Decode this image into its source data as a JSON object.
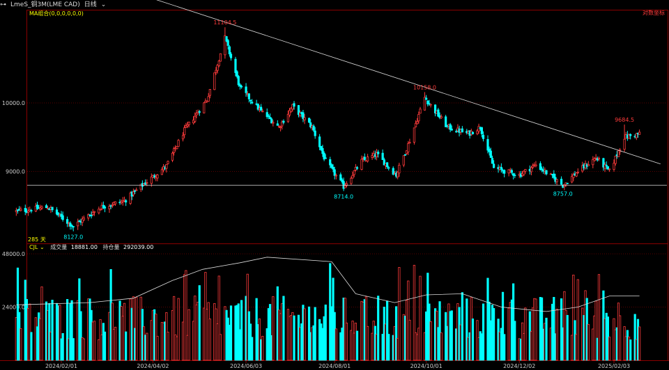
{
  "header": {
    "link_icon": "link-icon",
    "symbol": "LmeS_铜3M(LME CAD)",
    "period": "日线",
    "dropdown_icon": "chevron-down-icon"
  },
  "price_panel": {
    "ma_label": "MA组合(0,0,0,0,0,0)",
    "log_scale_label": "对数坐标",
    "day_count_label": "285 天",
    "colors": {
      "up": "#ff3b3b",
      "down": "#00ffff",
      "ma_label": "#ffff00",
      "peak_label": "#ff3b3b",
      "trough_label": "#00ffff"
    }
  },
  "volume_panel": {
    "indicator": "CJL",
    "volume_label": "成交量",
    "volume_value": "18881.00",
    "oi_label": "持仓量",
    "oi_value": "292039.00"
  },
  "chart_data": {
    "type": "candlestick",
    "x_ticks": [
      "2024/02/01",
      "2024/04/02",
      "2024/06/03",
      "2024/08/01",
      "2024/10/01",
      "2024/12/02",
      "2025/02/03"
    ],
    "y_ticks_price": [
      "10000.0",
      "9000.0"
    ],
    "y_ticks_volume": [
      "48000.0",
      "24000.0"
    ],
    "price_range": [
      7950,
      11350
    ],
    "volume_range": [
      0,
      48000
    ],
    "annotations": [
      {
        "text": "11104.5",
        "kind": "high",
        "value": 11104.5,
        "date": "2024/05/20"
      },
      {
        "text": "8127.0",
        "kind": "low",
        "value": 8127.0,
        "date": "2024/02/09"
      },
      {
        "text": "8714.0",
        "kind": "low",
        "value": 8714.0,
        "date": "2024/08/07"
      },
      {
        "text": "10158.0",
        "kind": "high",
        "value": 10158.0,
        "date": "2024/09/30"
      },
      {
        "text": "8757.0",
        "kind": "low",
        "value": 8757.0,
        "date": "2024/12/31"
      },
      {
        "text": "9684.5",
        "kind": "high",
        "value": 9684.5,
        "date": "2025/02/10"
      }
    ],
    "anchors": [
      {
        "date": "2024/01/02",
        "close": 8420
      },
      {
        "date": "2024/01/23",
        "close": 8480
      },
      {
        "date": "2024/02/09",
        "close": 8200
      },
      {
        "date": "2024/02/27",
        "close": 8480
      },
      {
        "date": "2024/03/14",
        "close": 8570
      },
      {
        "date": "2024/03/26",
        "close": 8800
      },
      {
        "date": "2024/04/11",
        "close": 9080
      },
      {
        "date": "2024/04/23",
        "close": 9600
      },
      {
        "date": "2024/05/08",
        "close": 10050
      },
      {
        "date": "2024/05/20",
        "close": 10950
      },
      {
        "date": "2024/05/30",
        "close": 10220
      },
      {
        "date": "2024/06/13",
        "close": 9880
      },
      {
        "date": "2024/06/25",
        "close": 9650
      },
      {
        "date": "2024/07/04",
        "close": 9950
      },
      {
        "date": "2024/07/17",
        "close": 9650
      },
      {
        "date": "2024/07/26",
        "close": 9150
      },
      {
        "date": "2024/08/07",
        "close": 8780
      },
      {
        "date": "2024/08/19",
        "close": 9150
      },
      {
        "date": "2024/08/29",
        "close": 9250
      },
      {
        "date": "2024/09/11",
        "close": 8950
      },
      {
        "date": "2024/09/20",
        "close": 9450
      },
      {
        "date": "2024/09/30",
        "close": 10080
      },
      {
        "date": "2024/10/15",
        "close": 9650
      },
      {
        "date": "2024/10/29",
        "close": 9550
      },
      {
        "date": "2024/11/06",
        "close": 9650
      },
      {
        "date": "2024/11/15",
        "close": 9050
      },
      {
        "date": "2024/12/02",
        "close": 8950
      },
      {
        "date": "2024/12/13",
        "close": 9100
      },
      {
        "date": "2024/12/31",
        "close": 8800
      },
      {
        "date": "2025/01/10",
        "close": 9000
      },
      {
        "date": "2025/01/22",
        "close": 9200
      },
      {
        "date": "2025/01/31",
        "close": 9000
      },
      {
        "date": "2025/02/10",
        "close": 9500
      },
      {
        "date": "2025/02/20",
        "close": 9550
      }
    ],
    "trendline": {
      "start": {
        "date": "2023/12/01",
        "price": 12400
      },
      "end": {
        "date": "2025/03/06",
        "price": 9110
      }
    },
    "support_line": 8800,
    "open_interest": [
      {
        "date": "2024/01/02",
        "value": 25000
      },
      {
        "date": "2024/02/20",
        "value": 26000
      },
      {
        "date": "2024/03/20",
        "value": 28000
      },
      {
        "date": "2024/04/15",
        "value": 36000
      },
      {
        "date": "2024/05/05",
        "value": 41000
      },
      {
        "date": "2024/05/30",
        "value": 44000
      },
      {
        "date": "2024/06/17",
        "value": 46500
      },
      {
        "date": "2024/07/30",
        "value": 44500
      },
      {
        "date": "2024/08/15",
        "value": 30000
      },
      {
        "date": "2024/09/10",
        "value": 26000
      },
      {
        "date": "2024/10/01",
        "value": 29500
      },
      {
        "date": "2024/10/25",
        "value": 30000
      },
      {
        "date": "2024/11/20",
        "value": 24000
      },
      {
        "date": "2024/12/20",
        "value": 22000
      },
      {
        "date": "2025/01/10",
        "value": 24000
      },
      {
        "date": "2025/01/31",
        "value": 29000
      },
      {
        "date": "2025/02/20",
        "value": 29000
      }
    ]
  }
}
